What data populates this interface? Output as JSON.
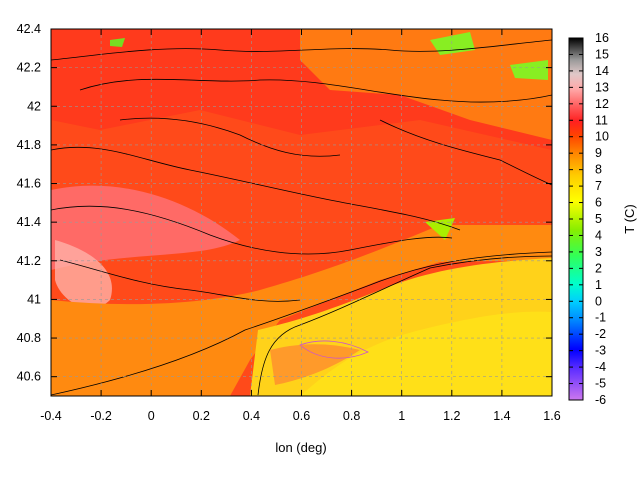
{
  "chart_data": {
    "type": "heatmap",
    "title": "",
    "xlabel": "lon (deg)",
    "ylabel": "",
    "colorbar_label": "T (C)",
    "xlim": [
      -0.4,
      1.6
    ],
    "ylim": [
      40.5,
      42.4
    ],
    "x_ticks": [
      "-0.4",
      "-0.2",
      "0",
      "0.2",
      "0.4",
      "0.6",
      "0.8",
      "1",
      "1.2",
      "1.4",
      "1.6"
    ],
    "y_ticks": [
      "40.6",
      "40.8",
      "41",
      "41.2",
      "41.4",
      "41.6",
      "41.8",
      "42",
      "42.2",
      "42.4"
    ],
    "colorbar_range": [
      -6,
      16
    ],
    "colorbar_ticks": [
      "16",
      "15",
      "14",
      "13",
      "12",
      "11",
      "10",
      "9",
      "8",
      "7",
      "6",
      "5",
      "4",
      "3",
      "2",
      "1",
      "0",
      "-1",
      "-2",
      "-3",
      "-4",
      "-5",
      "-6"
    ],
    "grid": true,
    "contours": true,
    "palette": [
      "#cc66ff",
      "#6633ff",
      "#0000ff",
      "#0077ff",
      "#00ccff",
      "#00ffcc",
      "#33ff66",
      "#66dd00",
      "#bbee00",
      "#ffff00",
      "#ffcc00",
      "#ff8800",
      "#ff2222",
      "#ff7777",
      "#ffcccc",
      "#888888",
      "#000000"
    ]
  }
}
